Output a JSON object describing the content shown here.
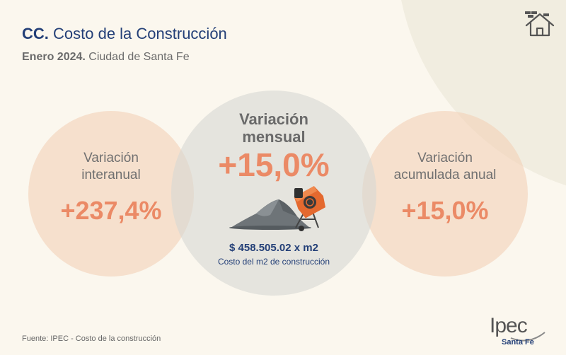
{
  "header": {
    "title_bold": "CC.",
    "title_rest": " Costo de la Construcción",
    "subtitle_bold": "Enero 2024.",
    "subtitle_rest": " Ciudad de Santa Fe"
  },
  "left": {
    "label_line1": "Variación",
    "label_line2": "interanual",
    "value": "+237,4%"
  },
  "middle": {
    "label_line1": "Variación",
    "label_line2": "mensual",
    "value": "+15,0%",
    "price": "$ 458.505.02 x m2",
    "price_caption": "Costo del m2 de construcción"
  },
  "right": {
    "label_line1": "Variación",
    "label_line2": "acumulada anual",
    "value": "+15,0%"
  },
  "footer": {
    "source": "Fuente: IPEC - Costo de la construcción"
  },
  "logo": {
    "word": "Ipec",
    "sub": "Santa Fe"
  },
  "colors": {
    "navy": "#233f77",
    "orange": "#eb8a66",
    "peach": "#f3cdb2",
    "grey_circle": "#d6d8d4",
    "background": "#fbf7ee"
  },
  "icons": {
    "top_right": "house-icon",
    "illustration": "cement-mixer-icon"
  }
}
